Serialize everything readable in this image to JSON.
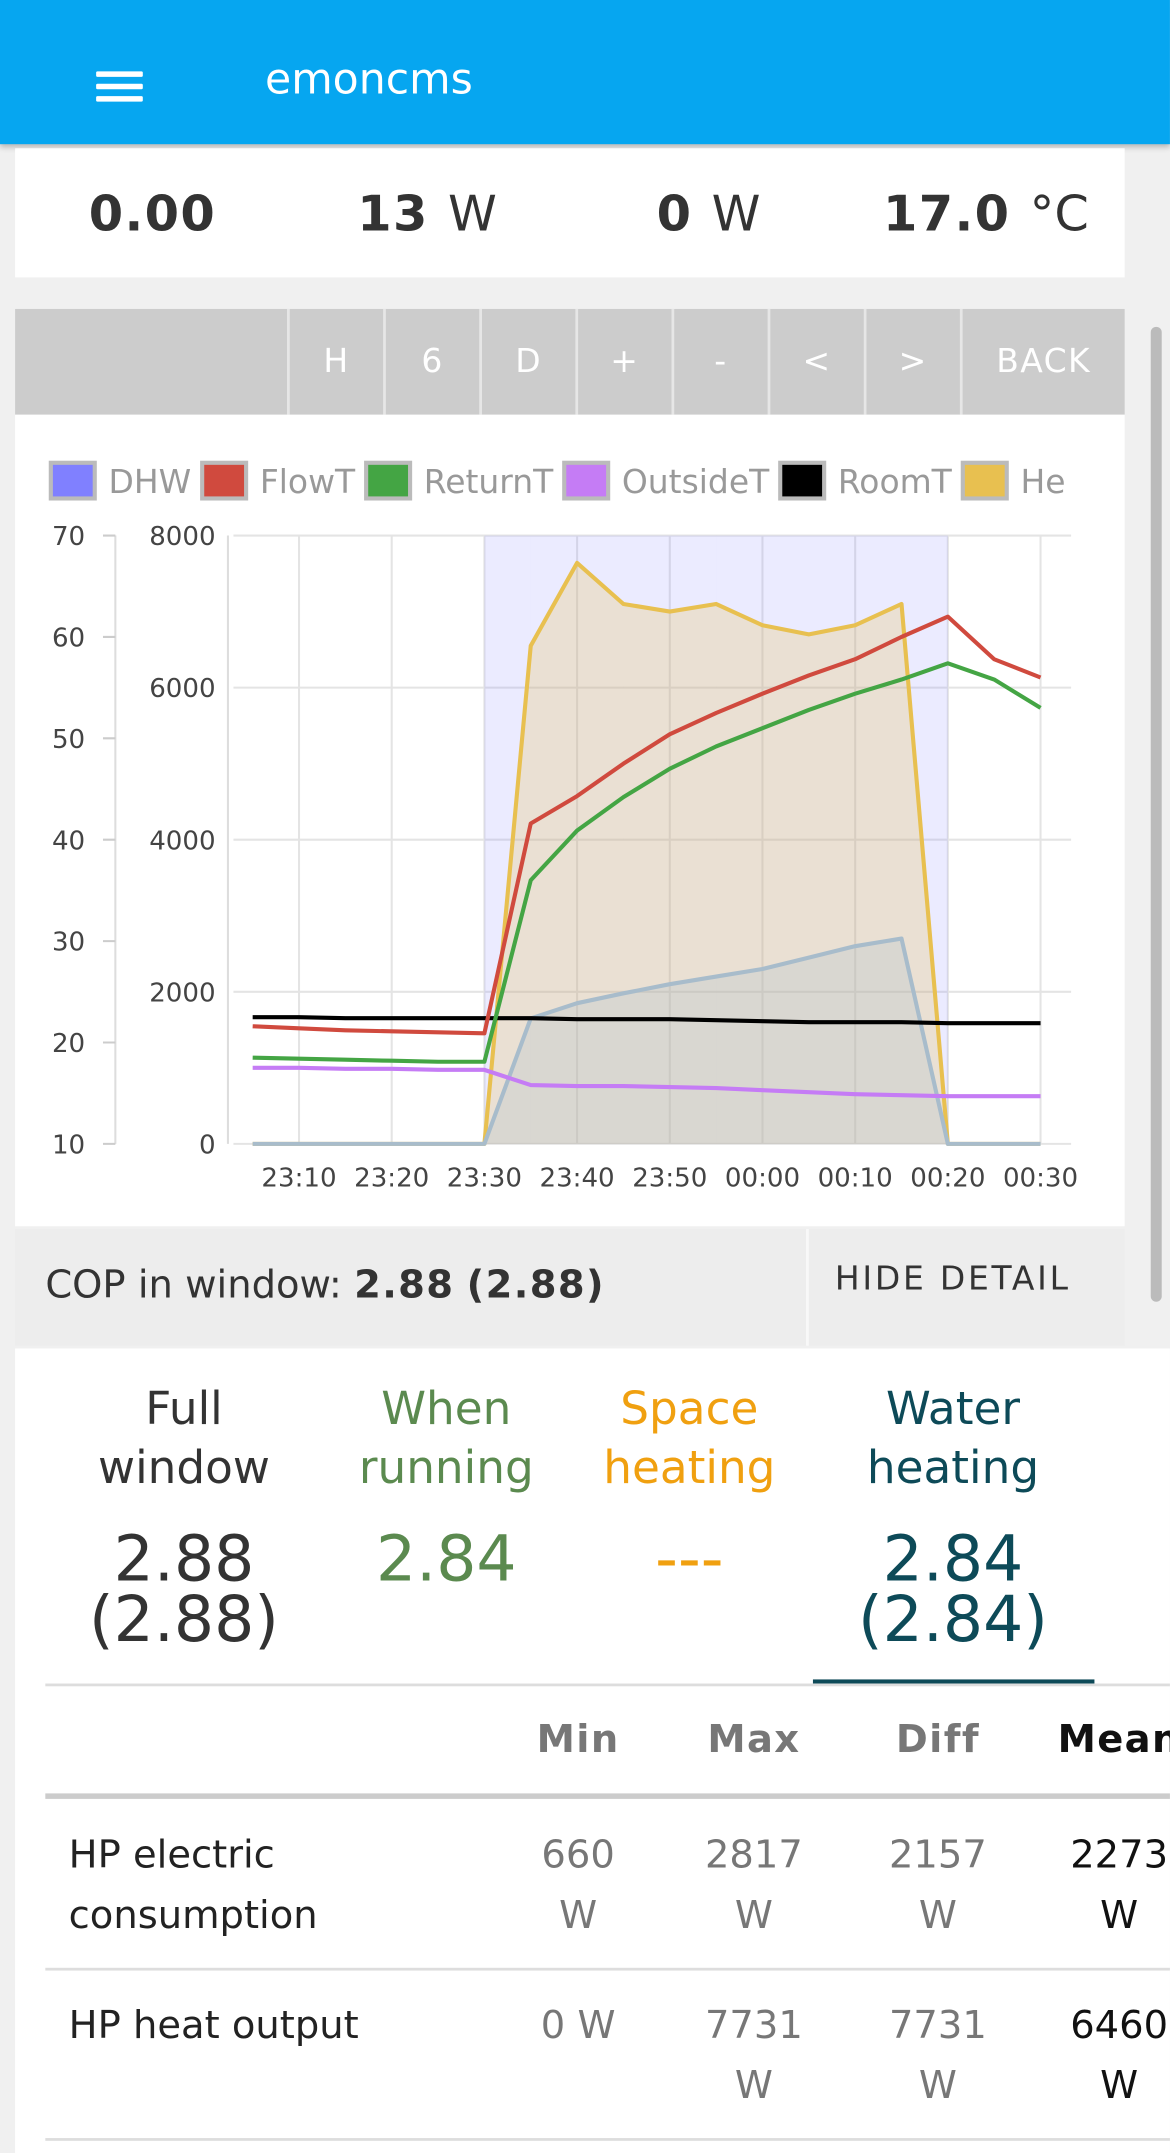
{
  "header": {
    "title": "emoncms"
  },
  "stats": [
    {
      "value": "0.00"
    },
    {
      "value": "13",
      "unit": "W"
    },
    {
      "value": "0",
      "unit": "W"
    },
    {
      "value": "17.0",
      "unit": "°C"
    }
  ],
  "buttons": [
    "H",
    "6",
    "D",
    "+",
    "-",
    "<",
    ">",
    "BACK"
  ],
  "chart_data": {
    "type": "line",
    "categories": [
      null,
      "23:10",
      null,
      "23:20",
      null,
      "23:30",
      null,
      "23:40",
      null,
      "23:50",
      null,
      "00:00",
      null,
      "00:10",
      null,
      "00:20",
      null,
      "00:30"
    ],
    "ylim": [
      10,
      70
    ],
    "yticks": [
      10,
      20,
      30,
      40,
      50,
      60,
      70
    ],
    "y2lim": [
      0,
      8000
    ],
    "y2ticks": [
      0,
      2000,
      4000,
      6000,
      8000
    ],
    "grid": true,
    "series": [
      {
        "name": "DHW",
        "color": "#8080ff",
        "kind": "band",
        "values": [
          0,
          0,
          0,
          0,
          0,
          1,
          1,
          1,
          1,
          1,
          1,
          1,
          1,
          1,
          1,
          0,
          0,
          0
        ]
      },
      {
        "name": "FlowT",
        "color": "#d04a3e",
        "values": [
          21.6,
          21.4,
          21.2,
          21.1,
          21.0,
          20.9,
          41.6,
          44.3,
          47.5,
          50.4,
          52.5,
          54.4,
          56.2,
          57.8,
          60.0,
          62.0,
          57.8,
          56.0
        ]
      },
      {
        "name": "ReturnT",
        "color": "#44a544",
        "values": [
          18.5,
          18.4,
          18.3,
          18.2,
          18.1,
          18.1,
          36.0,
          40.9,
          44.2,
          47.0,
          49.2,
          51.0,
          52.8,
          54.4,
          55.8,
          57.4,
          55.8,
          53.0
        ]
      },
      {
        "name": "OutsideT",
        "color": "#c57cf5",
        "values": [
          17.5,
          17.5,
          17.4,
          17.4,
          17.3,
          17.3,
          15.8,
          15.7,
          15.7,
          15.6,
          15.5,
          15.3,
          15.1,
          14.9,
          14.8,
          14.7,
          14.7,
          14.7
        ]
      },
      {
        "name": "RoomT",
        "color": "#000000",
        "values": [
          22.5,
          22.5,
          22.4,
          22.4,
          22.4,
          22.4,
          22.4,
          22.3,
          22.3,
          22.3,
          22.2,
          22.1,
          22.0,
          22.0,
          22.0,
          21.9,
          21.9,
          21.9
        ]
      },
      {
        "name": "He",
        "color": "#e8c050",
        "axis": "y2",
        "kind": "area",
        "values": [
          0,
          0,
          0,
          0,
          0,
          0,
          6550,
          7640,
          7100,
          7000,
          7100,
          6820,
          6700,
          6820,
          7100,
          0,
          0,
          0
        ]
      },
      {
        "color": "#a8bccb",
        "axis": "y2",
        "kind": "area",
        "values": [
          0,
          0,
          0,
          0,
          0,
          0,
          1650,
          1850,
          1980,
          2100,
          2200,
          2300,
          2450,
          2600,
          2700,
          0,
          0,
          0
        ]
      }
    ]
  },
  "cop": {
    "label": "COP in window:",
    "value": "2.88",
    "value2": "(2.88)",
    "button": "HIDE DETAIL"
  },
  "cop_columns": [
    {
      "title": "Full window",
      "value": "2.88",
      "value2": "(2.88)"
    },
    {
      "title": "When running",
      "value": "2.84"
    },
    {
      "title": "Space heating",
      "value": "---"
    },
    {
      "title": "Water heating",
      "value": "2.84",
      "value2": "(2.84)"
    }
  ],
  "table": {
    "headers": [
      "Min",
      "Max",
      "Diff",
      "Mean"
    ],
    "rows": [
      [
        "HP electric consumption",
        "660 W",
        "2817 W",
        "2157 W",
        "2273 W"
      ],
      [
        "HP heat output",
        "0 W",
        "7731 W",
        "7731 W",
        "6460 W"
      ]
    ]
  }
}
